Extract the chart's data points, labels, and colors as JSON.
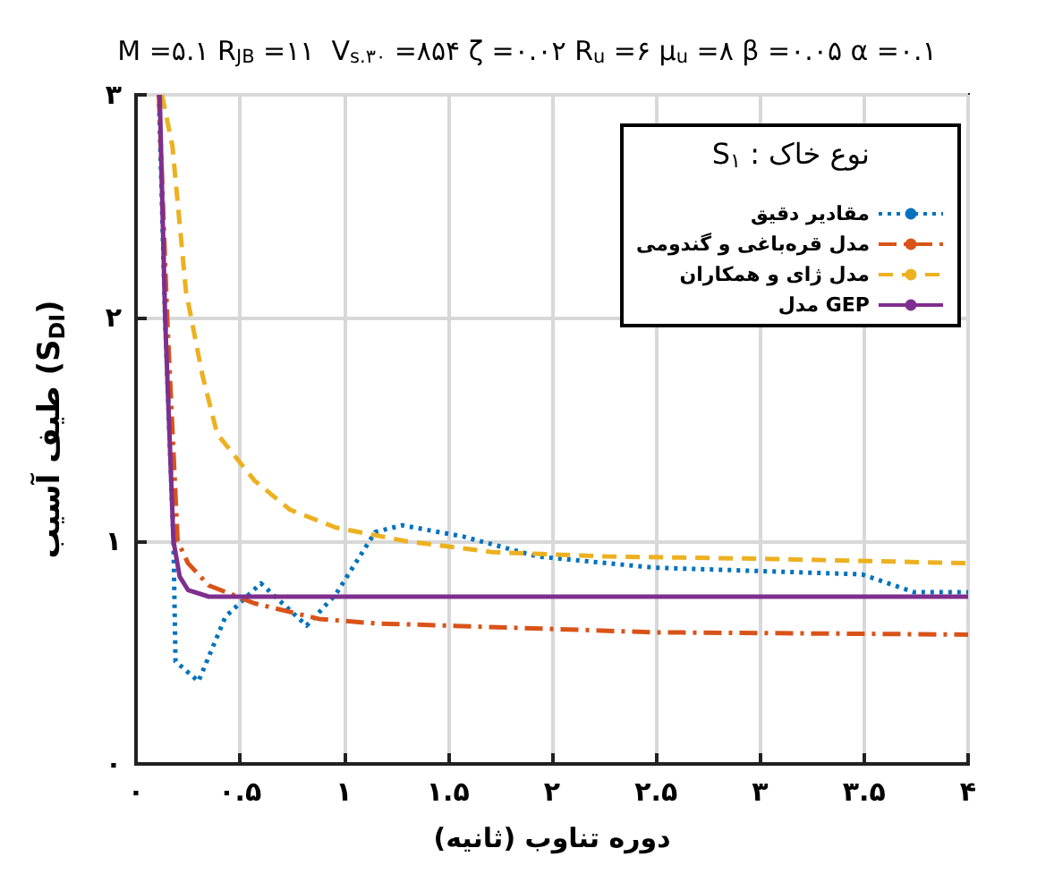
{
  "chart_data": {
    "type": "line",
    "title": "M =۵.۱ R$_{JB}$ =۱۱  V$_{s.۳۰}$ =۸۵۴ ζ =۰.۰۲ R$_{u}$ =۶ μ$_{u}$ =۸ β =۰.۰۵ α =۰.۱",
    "xlabel": "دوره تناوب (ثانیه)",
    "ylabel": "طیف آسیب (S$_{DI}$)",
    "legend_title": "S$_{۱}$ : نوع خاک",
    "series": [
      {
        "name": "مقادیر دقیق",
        "color": "#0072bd",
        "line_style": "dotted",
        "x": [
          0.11,
          0.14,
          0.18,
          0.19,
          0.3,
          0.43,
          0.6,
          0.82,
          0.96,
          1.15,
          1.28,
          1.57,
          1.93,
          2.49,
          3.49,
          3.74,
          4.0
        ],
        "values": [
          3,
          2,
          1,
          0.46,
          0.37,
          0.66,
          0.81,
          0.62,
          0.76,
          1.04,
          1.07,
          1.02,
          0.93,
          0.88,
          0.85,
          0.77,
          0.77
        ]
      },
      {
        "name": "مدل قره‌باغی و گندومی",
        "color": "#d95319",
        "line_style": "dashdot",
        "x": [
          0.11,
          0.15,
          0.2,
          0.25,
          0.35,
          0.57,
          0.88,
          1.15,
          1.5,
          2.5,
          4.0
        ],
        "values": [
          3,
          2,
          1,
          0.9,
          0.8,
          0.72,
          0.65,
          0.63,
          0.62,
          0.59,
          0.58
        ]
      },
      {
        "name": "مدل ژای و همکاران",
        "color": "#edb120",
        "line_style": "dashed",
        "x": [
          0.125,
          0.175,
          0.24,
          0.32,
          0.39,
          0.57,
          0.74,
          0.96,
          1.29,
          1.71,
          2.26,
          3.0,
          4.0
        ],
        "values": [
          3,
          2.77,
          2.12,
          1.74,
          1.48,
          1.27,
          1.14,
          1.06,
          1.0,
          0.95,
          0.93,
          0.92,
          0.9
        ]
      },
      {
        "name": "مدل GEP",
        "color": "#7e2f8e",
        "line_style": "solid",
        "x": [
          0.114,
          0.14,
          0.18,
          0.21,
          0.25,
          0.35,
          4.0
        ],
        "values": [
          3,
          2,
          1,
          0.84,
          0.78,
          0.75,
          0.75
        ]
      }
    ],
    "xlim": [
      0,
      4
    ],
    "xticks": [
      {
        "value": 0,
        "label": "۰"
      },
      {
        "value": 0.5,
        "label": "۰.۵"
      },
      {
        "value": 1,
        "label": "۱"
      },
      {
        "value": 1.5,
        "label": "۱.۵"
      },
      {
        "value": 2,
        "label": "۲"
      },
      {
        "value": 2.5,
        "label": "۲.۵"
      },
      {
        "value": 3,
        "label": "۳"
      },
      {
        "value": 3.5,
        "label": "۳.۵"
      },
      {
        "value": 4,
        "label": "۴"
      }
    ],
    "ylim": [
      0,
      3
    ],
    "yticks": [
      {
        "value": 0,
        "label": "۰"
      },
      {
        "value": 1,
        "label": "۱"
      },
      {
        "value": 2,
        "label": "۲"
      },
      {
        "value": 3,
        "label": "۳"
      }
    ],
    "grid": true,
    "legend": "top right",
    "marker": "none"
  }
}
